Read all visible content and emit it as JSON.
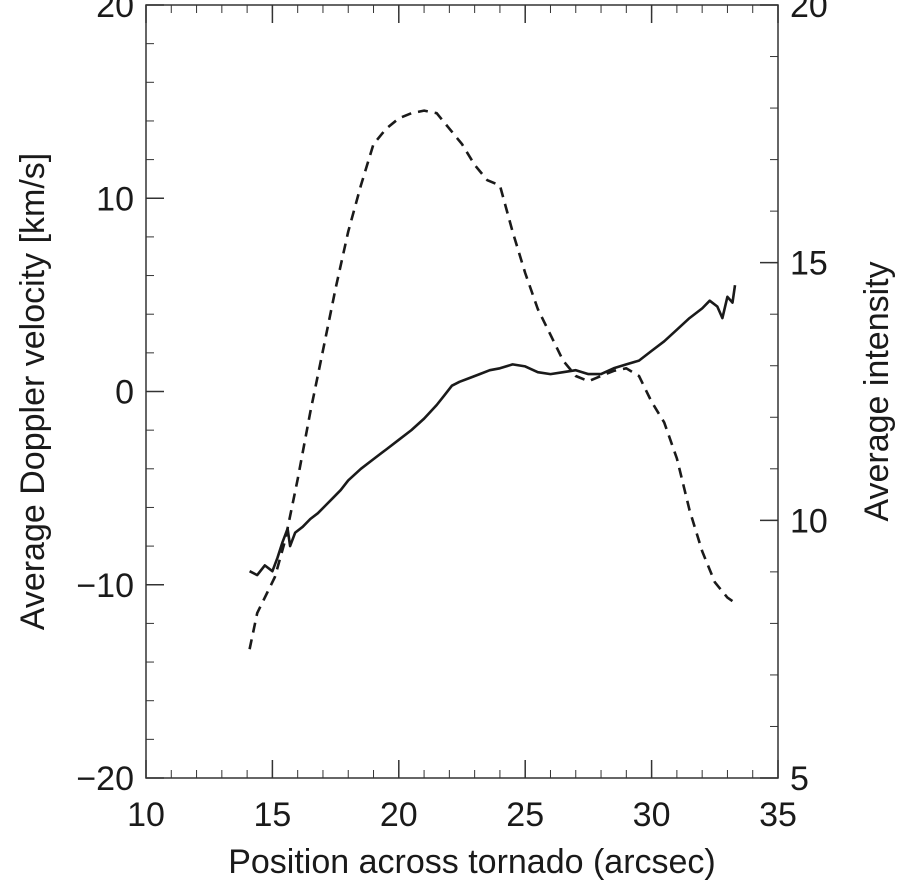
{
  "chart_data": {
    "type": "line",
    "xlabel": "Position across tornado (arcsec)",
    "ylabel": "Average Doppler velocity [km/s]",
    "y2label": "Average intensity",
    "xlim": [
      10,
      35
    ],
    "ylim": [
      -20,
      20
    ],
    "y2lim": [
      5,
      20
    ],
    "x_ticks": [
      10,
      15,
      20,
      25,
      30,
      35
    ],
    "x_tick_labels": [
      "10",
      "15",
      "20",
      "25",
      "30",
      "35"
    ],
    "y_ticks": [
      -20,
      -10,
      0,
      10,
      20
    ],
    "y_tick_labels": [
      "−20",
      "−10",
      "0",
      "10",
      "20"
    ],
    "y2_ticks": [
      5,
      10,
      15,
      20
    ],
    "y2_tick_labels": [
      "5",
      "10",
      "15",
      "20"
    ],
    "grid": false,
    "series": [
      {
        "style": "solid",
        "axis": "left",
        "x": [
          14.1,
          14.4,
          14.7,
          15.0,
          15.2,
          15.4,
          15.6,
          15.7,
          15.9,
          16.2,
          16.5,
          16.8,
          17.1,
          17.4,
          17.7,
          18.0,
          18.5,
          19.0,
          19.5,
          20.0,
          20.5,
          21.0,
          21.5,
          21.8,
          22.1,
          22.4,
          22.8,
          23.2,
          23.6,
          24.0,
          24.5,
          25.0,
          25.5,
          26.0,
          26.5,
          27.0,
          27.5,
          28.0,
          28.5,
          29.0,
          29.5,
          30.0,
          30.5,
          31.0,
          31.5,
          32.0,
          32.3,
          32.6,
          32.8,
          33.0,
          33.2,
          33.3
        ],
        "y": [
          -9.3,
          -9.5,
          -9.0,
          -9.3,
          -8.6,
          -7.8,
          -7.1,
          -8.0,
          -7.3,
          -7.0,
          -6.6,
          -6.3,
          -5.9,
          -5.5,
          -5.1,
          -4.6,
          -4.0,
          -3.5,
          -3.0,
          -2.5,
          -2.0,
          -1.4,
          -0.7,
          -0.2,
          0.3,
          0.5,
          0.7,
          0.9,
          1.1,
          1.2,
          1.4,
          1.3,
          1.0,
          0.9,
          1.0,
          1.1,
          0.9,
          0.9,
          1.2,
          1.4,
          1.6,
          2.1,
          2.6,
          3.2,
          3.8,
          4.3,
          4.7,
          4.4,
          3.8,
          4.9,
          4.6,
          5.5
        ]
      },
      {
        "style": "dashed",
        "axis": "right",
        "x": [
          14.1,
          14.4,
          14.8,
          15.1,
          15.5,
          16.0,
          16.5,
          17.0,
          17.5,
          18.0,
          18.5,
          19.0,
          19.5,
          20.0,
          20.5,
          21.0,
          21.5,
          22.0,
          22.5,
          23.0,
          23.5,
          24.0,
          24.5,
          25.0,
          25.5,
          26.0,
          26.5,
          27.0,
          27.5,
          28.0,
          28.5,
          29.0,
          29.5,
          30.0,
          30.5,
          31.0,
          31.5,
          32.0,
          32.5,
          33.0,
          33.3
        ],
        "y": [
          7.5,
          8.2,
          8.6,
          8.9,
          9.6,
          10.8,
          12.1,
          13.3,
          14.5,
          15.6,
          16.5,
          17.3,
          17.6,
          17.8,
          17.9,
          17.95,
          17.9,
          17.6,
          17.3,
          16.9,
          16.6,
          16.5,
          15.6,
          14.8,
          14.1,
          13.6,
          13.1,
          12.8,
          12.7,
          12.8,
          12.9,
          12.95,
          12.8,
          12.3,
          11.9,
          11.2,
          10.2,
          9.4,
          8.8,
          8.5,
          8.4
        ]
      }
    ]
  }
}
